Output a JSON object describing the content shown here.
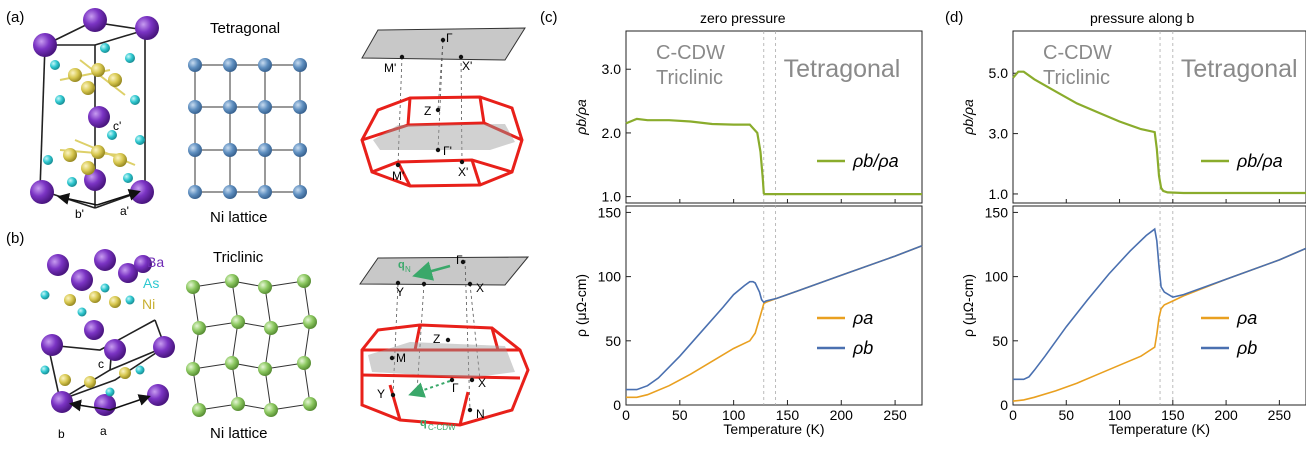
{
  "panels": {
    "a": {
      "tag": "(a)",
      "lattice_title": "Tetragonal",
      "lattice_caption": "Ni lattice",
      "axis_c": "c'",
      "axis_b": "b'",
      "axis_a": "a'",
      "bz_labels": {
        "gamma_top": "Γ",
        "m_top": "M'",
        "x_top": "X'",
        "z": "Z",
        "gamma": "Γ'",
        "m": "M'",
        "x": "X'"
      }
    },
    "b": {
      "tag": "(b)",
      "lattice_title": "Triclinic",
      "lattice_caption": "Ni lattice",
      "axis_c": "c",
      "axis_b": "b",
      "axis_a": "a",
      "legend": {
        "ba": "Ba",
        "as": "As",
        "ni": "Ni"
      },
      "bz_labels": {
        "gamma_top": "Γ",
        "y_top": "Y",
        "x_top": "X",
        "q_n": "q",
        "q_n_sub": "N",
        "z": "Z",
        "m": "M",
        "y": "Y",
        "gamma": "Γ",
        "x": "X",
        "n": "N",
        "q_cdw": "q",
        "q_cdw_sub": "C-CDW"
      }
    },
    "c": {
      "tag": "(c)",
      "title": "zero pressure"
    },
    "d": {
      "tag": "(d)",
      "title": "pressure along b"
    }
  },
  "colors": {
    "ba": "#6f2bb5",
    "as": "#2ec8d0",
    "ni": "#d8c850",
    "tet_ni": "#5f8fc0",
    "tri_ni": "#8cc860",
    "bz": "#e8201a",
    "arrow": "#3aa86a",
    "ratio": "#8aac2c",
    "rho_a": "#e9a020",
    "rho_b": "#4a70b0",
    "phase_text": "#8a8a8a"
  },
  "chart_data": [
    {
      "type": "line",
      "panel": "c",
      "title": "zero pressure",
      "xlabel": "Temperature (K)",
      "xlim": [
        0,
        275
      ],
      "xticks": [
        0,
        50,
        100,
        150,
        200,
        250
      ],
      "phase_labels": {
        "low": "C-CDW",
        "low2": "Triclinic",
        "high": "Tetragonal"
      },
      "transition_lines": [
        128,
        139
      ],
      "top": {
        "ylabel": "ρb/ρa",
        "ylim": [
          0.9,
          3.6
        ],
        "yticks": [
          "1.0",
          "2.0",
          "3.0"
        ],
        "legend": "ρb/ρa",
        "series": [
          {
            "name": "ρb/ρa",
            "x": [
              0,
              10,
              20,
              40,
              60,
              80,
              100,
              115,
              122,
              125,
              127,
              128,
              129,
              130,
              140,
              160,
              200,
              250,
              275
            ],
            "y": [
              2.15,
              2.22,
              2.2,
              2.2,
              2.18,
              2.14,
              2.13,
              2.13,
              2.0,
              1.7,
              1.3,
              1.05,
              1.04,
              1.04,
              1.04,
              1.04,
              1.04,
              1.04,
              1.04
            ]
          }
        ]
      },
      "bottom": {
        "ylabel": "ρ (μΩ-cm)",
        "ylim": [
          0,
          155
        ],
        "yticks": [
          "0",
          "50",
          "100",
          "150"
        ],
        "series": [
          {
            "name": "ρa",
            "x": [
              0,
              10,
              20,
              40,
              60,
              80,
              100,
              115,
              120,
              125,
              128,
              130,
              140,
              160,
              200,
              250,
              275
            ],
            "y": [
              6,
              6,
              8,
              15,
              24,
              34,
              44,
              50,
              56,
              70,
              79,
              80,
              83,
              89,
              101,
              116,
              124
            ]
          },
          {
            "name": "ρb",
            "x": [
              0,
              10,
              20,
              30,
              50,
              70,
              90,
              100,
              110,
              115,
              118,
              120,
              124,
              126,
              128,
              130,
              140,
              160,
              200,
              250,
              275
            ],
            "y": [
              12,
              12,
              15,
              21,
              38,
              57,
              76,
              86,
              93,
              96,
              96,
              95,
              88,
              82,
              80,
              81,
              83,
              89,
              101,
              116,
              124
            ]
          }
        ]
      }
    },
    {
      "type": "line",
      "panel": "d",
      "title": "pressure along b",
      "xlabel": "Temperature (K)",
      "xlim": [
        0,
        275
      ],
      "xticks": [
        0,
        50,
        100,
        150,
        200,
        250
      ],
      "phase_labels": {
        "low": "C-CDW",
        "low2": "Triclinic",
        "high": "Tetragonal"
      },
      "transition_lines": [
        138,
        150
      ],
      "top": {
        "ylabel": "ρb/ρa",
        "ylim": [
          0.7,
          6.4
        ],
        "yticks": [
          "1.0",
          "3.0",
          "5.0"
        ],
        "legend": "ρb/ρa",
        "series": [
          {
            "name": "ρb/ρa",
            "x": [
              0,
              5,
              10,
              20,
              40,
              60,
              80,
              100,
              120,
              133,
              135,
              137,
              139,
              141,
              145,
              160,
              200,
              250,
              275
            ],
            "y": [
              4.85,
              5.05,
              5.05,
              4.8,
              4.4,
              4.0,
              3.7,
              3.4,
              3.15,
              3.05,
              2.5,
              1.6,
              1.2,
              1.1,
              1.05,
              1.03,
              1.03,
              1.03,
              1.03
            ]
          }
        ]
      },
      "bottom": {
        "ylabel": "ρ (μΩ-cm)",
        "ylim": [
          0,
          155
        ],
        "yticks": [
          "0",
          "50",
          "100",
          "150"
        ],
        "series": [
          {
            "name": "ρa",
            "x": [
              0,
              10,
              20,
              40,
              60,
              80,
              100,
              120,
              133,
              135,
              137,
              139,
              142,
              150,
              160,
              200,
              250,
              275
            ],
            "y": [
              3,
              4,
              6,
              11,
              17,
              24,
              31,
              38,
              45,
              55,
              68,
              75,
              78,
              81,
              85,
              98,
              113,
              122
            ]
          },
          {
            "name": "ρb",
            "x": [
              0,
              5,
              10,
              15,
              20,
              30,
              50,
              70,
              90,
              110,
              125,
              133,
              135,
              137,
              139,
              142,
              150,
              160,
              200,
              250,
              275
            ],
            "y": [
              20,
              20,
              20,
              22,
              27,
              38,
              61,
              82,
              102,
              120,
              132,
              137,
              128,
              108,
              92,
              88,
              84,
              86,
              98,
              113,
              122
            ]
          }
        ]
      }
    }
  ]
}
